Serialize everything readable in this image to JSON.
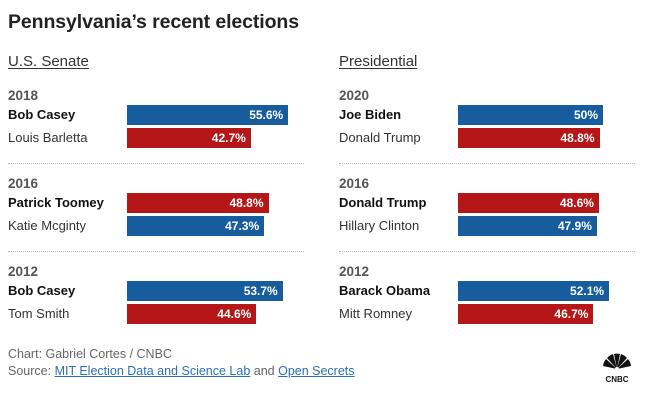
{
  "title": "Pennsylvania’s recent elections",
  "colors": {
    "democrat": "#175d9e",
    "republican": "#b51617"
  },
  "footer": {
    "credit": "Chart: Gabriel Cortes / CNBC",
    "source_prefix": "Source: ",
    "source_link1": "MIT Election Data and Science Lab",
    "source_and": " and ",
    "source_link2": "Open Secrets"
  },
  "logo": {
    "text": "CNBC",
    "icon": "cnbc-peacock-icon"
  },
  "chart_data": [
    {
      "type": "bar",
      "title": "U.S. Senate",
      "xlim": [
        0,
        100
      ],
      "groups": [
        {
          "year": "2018",
          "candidates": [
            {
              "name": "Bob Casey",
              "party": "D",
              "value": 55.6,
              "label": "55.6%",
              "winner": true
            },
            {
              "name": "Louis Barletta",
              "party": "R",
              "value": 42.7,
              "label": "42.7%",
              "winner": false
            }
          ]
        },
        {
          "year": "2016",
          "candidates": [
            {
              "name": "Patrick Toomey",
              "party": "R",
              "value": 48.8,
              "label": "48.8%",
              "winner": true
            },
            {
              "name": "Katie Mcginty",
              "party": "D",
              "value": 47.3,
              "label": "47.3%",
              "winner": false
            }
          ]
        },
        {
          "year": "2012",
          "candidates": [
            {
              "name": "Bob Casey",
              "party": "D",
              "value": 53.7,
              "label": "53.7%",
              "winner": true
            },
            {
              "name": "Tom Smith",
              "party": "R",
              "value": 44.6,
              "label": "44.6%",
              "winner": false
            }
          ]
        }
      ]
    },
    {
      "type": "bar",
      "title": "Presidential",
      "xlim": [
        0,
        100
      ],
      "groups": [
        {
          "year": "2020",
          "candidates": [
            {
              "name": "Joe Biden",
              "party": "D",
              "value": 50,
              "label": "50%",
              "winner": true
            },
            {
              "name": "Donald Trump",
              "party": "R",
              "value": 48.8,
              "label": "48.8%",
              "winner": false
            }
          ]
        },
        {
          "year": "2016",
          "candidates": [
            {
              "name": "Donald Trump",
              "party": "R",
              "value": 48.6,
              "label": "48.6%",
              "winner": true
            },
            {
              "name": "Hillary Clinton",
              "party": "D",
              "value": 47.9,
              "label": "47.9%",
              "winner": false
            }
          ]
        },
        {
          "year": "2012",
          "candidates": [
            {
              "name": "Barack Obama",
              "party": "D",
              "value": 52.1,
              "label": "52.1%",
              "winner": true
            },
            {
              "name": "Mitt Romney",
              "party": "R",
              "value": 46.7,
              "label": "46.7%",
              "winner": false
            }
          ]
        }
      ]
    }
  ]
}
